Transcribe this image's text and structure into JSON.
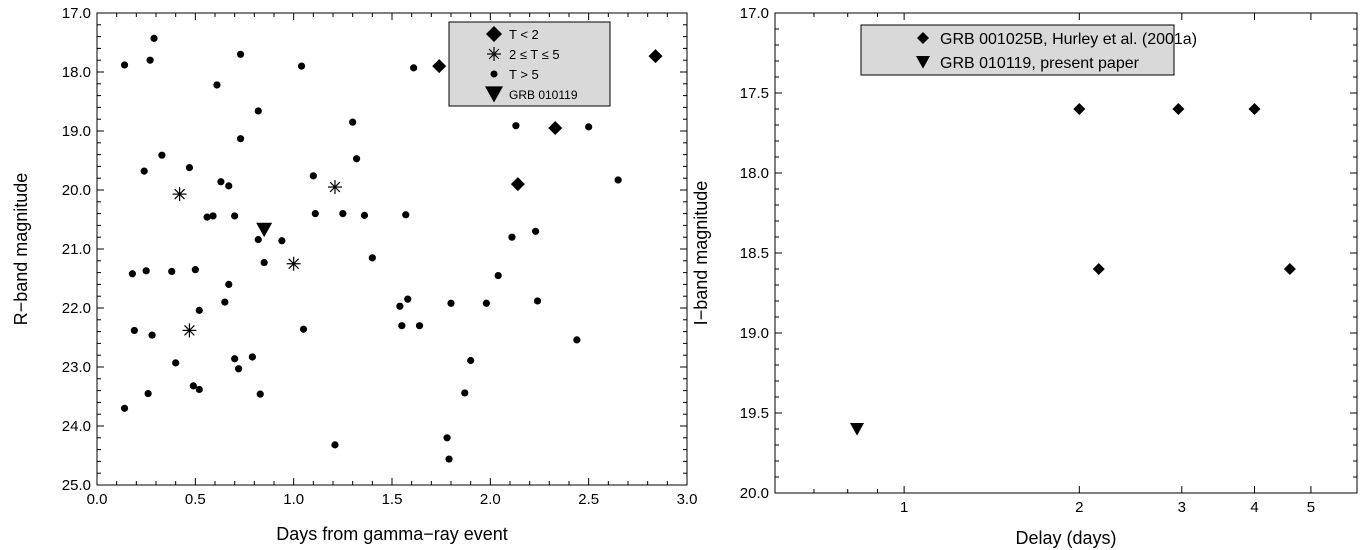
{
  "chart_data": [
    {
      "type": "scatter",
      "title": "",
      "xlabel": "Days from gamma−ray event",
      "ylabel": "R−band magnitude",
      "xlim": [
        0.0,
        3.0
      ],
      "ylim": [
        17.0,
        25.0
      ],
      "y_inverted": true,
      "grid": false,
      "legend_position": "top-right",
      "xticks": [
        "0.0",
        "0.5",
        "1.0",
        "1.5",
        "2.0",
        "2.5",
        "3.0"
      ],
      "yticks": [
        "17.0",
        "18.0",
        "19.0",
        "20.0",
        "21.0",
        "22.0",
        "23.0",
        "24.0",
        "25.0"
      ],
      "series": [
        {
          "name": "T < 2",
          "marker": "diamond",
          "points": [
            [
              1.74,
              17.9
            ],
            [
              2.84,
              17.73
            ],
            [
              2.33,
              18.95
            ],
            [
              2.14,
              19.9
            ]
          ]
        },
        {
          "name": "2 ≤ T ≤ 5",
          "marker": "asterisk",
          "points": [
            [
              0.42,
              20.07
            ],
            [
              1.21,
              19.95
            ],
            [
              1.0,
              21.25
            ],
            [
              0.47,
              22.38
            ]
          ]
        },
        {
          "name": "T > 5",
          "marker": "dot",
          "points": [
            [
              0.14,
              17.88
            ],
            [
              0.27,
              17.8
            ],
            [
              0.29,
              17.43
            ],
            [
              0.73,
              17.7
            ],
            [
              1.04,
              17.9
            ],
            [
              1.61,
              17.93
            ],
            [
              0.61,
              18.22
            ],
            [
              0.82,
              18.66
            ],
            [
              0.73,
              19.13
            ],
            [
              1.3,
              18.85
            ],
            [
              2.13,
              18.91
            ],
            [
              2.5,
              18.93
            ],
            [
              0.33,
              19.41
            ],
            [
              0.24,
              19.68
            ],
            [
              0.47,
              19.62
            ],
            [
              1.32,
              19.47
            ],
            [
              1.1,
              19.76
            ],
            [
              0.63,
              19.86
            ],
            [
              0.67,
              19.93
            ],
            [
              2.65,
              19.83
            ],
            [
              0.56,
              20.46
            ],
            [
              0.59,
              20.44
            ],
            [
              0.7,
              20.44
            ],
            [
              1.11,
              20.4
            ],
            [
              1.25,
              20.4
            ],
            [
              1.36,
              20.43
            ],
            [
              1.57,
              20.42
            ],
            [
              0.82,
              20.84
            ],
            [
              0.94,
              20.86
            ],
            [
              2.11,
              20.8
            ],
            [
              2.23,
              20.7
            ],
            [
              0.85,
              21.23
            ],
            [
              1.4,
              21.15
            ],
            [
              0.18,
              21.42
            ],
            [
              0.25,
              21.37
            ],
            [
              0.38,
              21.38
            ],
            [
              0.5,
              21.35
            ],
            [
              2.04,
              21.45
            ],
            [
              0.67,
              21.6
            ],
            [
              0.65,
              21.9
            ],
            [
              0.52,
              22.04
            ],
            [
              1.58,
              21.85
            ],
            [
              1.54,
              21.97
            ],
            [
              1.8,
              21.92
            ],
            [
              1.98,
              21.92
            ],
            [
              2.24,
              21.88
            ],
            [
              0.19,
              22.38
            ],
            [
              0.28,
              22.46
            ],
            [
              1.05,
              22.36
            ],
            [
              1.55,
              22.3
            ],
            [
              1.64,
              22.3
            ],
            [
              0.4,
              22.93
            ],
            [
              0.7,
              22.86
            ],
            [
              0.79,
              22.83
            ],
            [
              1.9,
              22.89
            ],
            [
              2.44,
              22.54
            ],
            [
              0.72,
              23.03
            ],
            [
              0.49,
              23.32
            ],
            [
              0.52,
              23.38
            ],
            [
              0.26,
              23.45
            ],
            [
              0.83,
              23.46
            ],
            [
              1.87,
              23.44
            ],
            [
              0.14,
              23.7
            ],
            [
              1.21,
              24.32
            ],
            [
              1.78,
              24.2
            ],
            [
              1.79,
              24.56
            ]
          ]
        },
        {
          "name": "GRB 010119",
          "marker": "triangle-down",
          "points": [
            [
              0.85,
              20.67
            ]
          ]
        }
      ]
    },
    {
      "type": "scatter",
      "title": "",
      "xlabel": "Delay (days)",
      "ylabel": "I−band magnitude",
      "x_scale": "log",
      "xlim": [
        0.6,
        6.0
      ],
      "ylim": [
        17.0,
        20.0
      ],
      "y_inverted": true,
      "grid": false,
      "legend_position": "top",
      "xticks": [
        "1",
        "2",
        "3",
        "4",
        "5"
      ],
      "yticks": [
        "17.0",
        "17.5",
        "18.0",
        "18.5",
        "19.0",
        "19.5",
        "20.0"
      ],
      "series": [
        {
          "name": "GRB 001025B, Hurley et al. (2001a)",
          "marker": "diamond",
          "points": [
            [
              2.0,
              17.6
            ],
            [
              2.96,
              17.6
            ],
            [
              4.0,
              17.6
            ],
            [
              2.16,
              18.6
            ],
            [
              4.6,
              18.6
            ]
          ]
        },
        {
          "name": "GRB 010119, present paper",
          "marker": "triangle-down",
          "points": [
            [
              0.83,
              19.6
            ]
          ]
        }
      ]
    }
  ]
}
